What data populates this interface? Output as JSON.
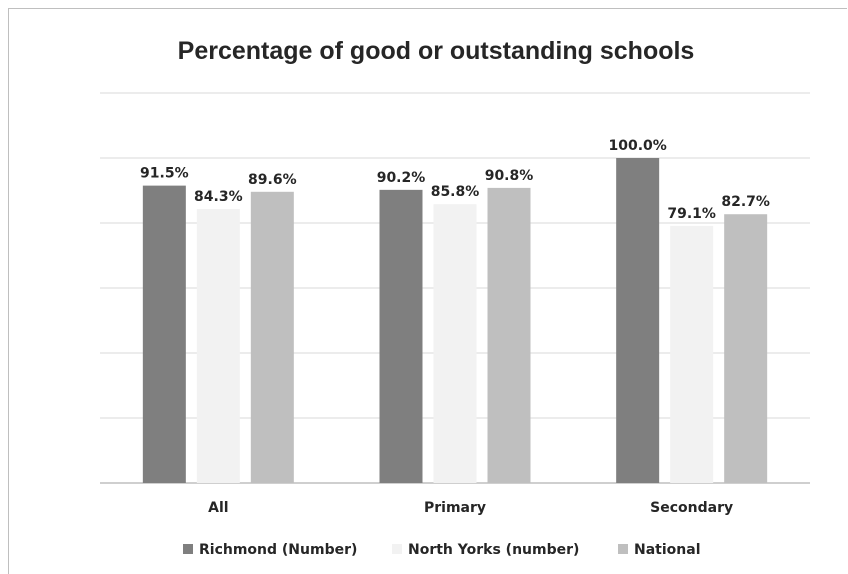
{
  "chart_data": {
    "type": "bar",
    "title": "Percentage of good or outstanding schools",
    "categories": [
      "All",
      "Primary",
      "Secondary"
    ],
    "series": [
      {
        "name": "Richmond (Number)",
        "color": "#7f7f7f",
        "values": [
          91.5,
          90.2,
          100.0
        ],
        "labels": [
          "91.5%",
          "90.2%",
          "100.0%"
        ]
      },
      {
        "name": "North Yorks (number)",
        "color": "#f2f2f2",
        "values": [
          84.3,
          85.8,
          79.1
        ],
        "labels": [
          "84.3%",
          "85.8%",
          "79.1%"
        ]
      },
      {
        "name": "National",
        "color": "#bfbfbf",
        "values": [
          89.6,
          90.8,
          82.7
        ],
        "labels": [
          "89.6%",
          "90.8%",
          "82.7%"
        ]
      }
    ],
    "ylim": [
      0,
      120
    ],
    "y_major_step": 20,
    "y_axis_labels_visible": false,
    "grid": true,
    "legend_position": "bottom",
    "gridline_color": "#d9d9d9",
    "axis_color": "#bfbfbf"
  }
}
